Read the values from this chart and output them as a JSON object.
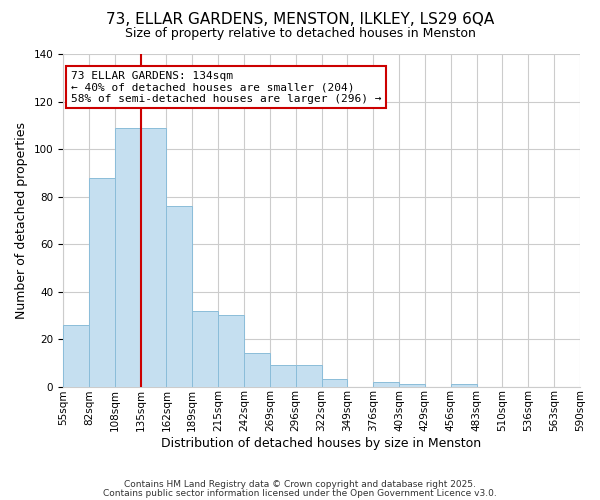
{
  "title": "73, ELLAR GARDENS, MENSTON, ILKLEY, LS29 6QA",
  "subtitle": "Size of property relative to detached houses in Menston",
  "xlabel": "Distribution of detached houses by size in Menston",
  "ylabel": "Number of detached properties",
  "bar_values": [
    26,
    88,
    109,
    109,
    76,
    32,
    30,
    14,
    9,
    9,
    3,
    0,
    2,
    1,
    0,
    1,
    0,
    0,
    0,
    0
  ],
  "categories": [
    "55sqm",
    "82sqm",
    "108sqm",
    "135sqm",
    "162sqm",
    "189sqm",
    "215sqm",
    "242sqm",
    "269sqm",
    "296sqm",
    "322sqm",
    "349sqm",
    "376sqm",
    "403sqm",
    "429sqm",
    "456sqm",
    "483sqm",
    "510sqm",
    "536sqm",
    "563sqm",
    "590sqm"
  ],
  "bar_color": "#c5dff0",
  "bar_edge_color": "#8bbdd9",
  "vline_x_index": 3,
  "vline_color": "#cc0000",
  "ylim": [
    0,
    140
  ],
  "yticks": [
    0,
    20,
    40,
    60,
    80,
    100,
    120,
    140
  ],
  "annotation_title": "73 ELLAR GARDENS: 134sqm",
  "annotation_line1": "← 40% of detached houses are smaller (204)",
  "annotation_line2": "58% of semi-detached houses are larger (296) →",
  "annotation_box_color": "#ffffff",
  "annotation_box_edge": "#cc0000",
  "footnote1": "Contains HM Land Registry data © Crown copyright and database right 2025.",
  "footnote2": "Contains public sector information licensed under the Open Government Licence v3.0.",
  "background_color": "#ffffff",
  "grid_color": "#cccccc",
  "title_fontsize": 11,
  "subtitle_fontsize": 9,
  "axis_label_fontsize": 9,
  "tick_fontsize": 7.5,
  "annotation_fontsize": 8,
  "footnote_fontsize": 6.5
}
